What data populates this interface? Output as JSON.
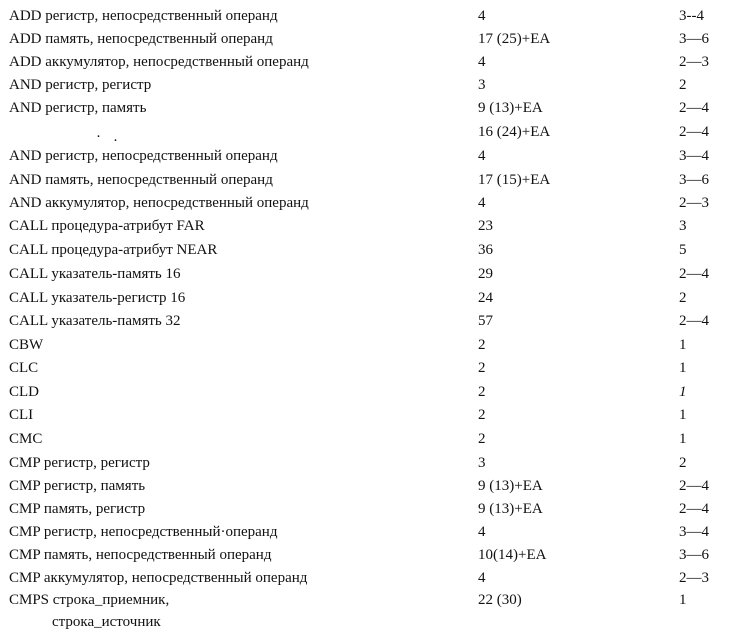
{
  "rows": [
    {
      "instr": "ADD регистр, непосредственный операнд",
      "cycles": "4",
      "bytes": "3--4"
    },
    {
      "instr": "ADD память, непосредственный операнд",
      "cycles": "17 (25)+EA",
      "bytes": "3—6"
    },
    {
      "instr": "ADD аккумулятор, непосредственный операнд",
      "cycles": "4",
      "bytes": "2—3"
    },
    {
      "instr": "AND регистр, регистр",
      "cycles": "3",
      "bytes": "2"
    },
    {
      "instr": "AND регистр, память",
      "cycles": "9 (13)+EA",
      "bytes": "2—4"
    },
    {
      "instr": "",
      "cycles": "16 (24)+EA",
      "bytes": "2—4"
    },
    {
      "instr": "AND регистр, непосредственный операнд",
      "cycles": "4",
      "bytes": "3—4"
    },
    {
      "instr": "AND память, непосредственный операнд",
      "cycles": "17 (15)+EA",
      "bytes": "3—6"
    },
    {
      "instr": "AND аккумулятор, непосредственный операнд",
      "cycles": "4",
      "bytes": "2—3"
    },
    {
      "instr": "CALL процедура-атрибут FAR",
      "cycles": "23",
      "bytes": "3"
    },
    {
      "instr": "CALL процедура-атрибут NEAR",
      "cycles": "36",
      "bytes": "5"
    },
    {
      "instr": "CALL указатель-память 16",
      "cycles": "29",
      "bytes": "2—4"
    },
    {
      "instr": "CALL указатель-регистр 16",
      "cycles": "24",
      "bytes": "2"
    },
    {
      "instr": "CALL указатель-память 32",
      "cycles": "57",
      "bytes": "2—4"
    },
    {
      "instr": "CBW",
      "cycles": "2",
      "bytes": "1"
    },
    {
      "instr": "CLC",
      "cycles": "2",
      "bytes": "1"
    },
    {
      "instr": "CLD",
      "cycles": "2",
      "bytes": "1"
    },
    {
      "instr": "CLI",
      "cycles": "2",
      "bytes": "1"
    },
    {
      "instr": "CMC",
      "cycles": "2",
      "bytes": "1"
    },
    {
      "instr": "CMP регистр, регистр",
      "cycles": "3",
      "bytes": "2"
    },
    {
      "instr": "CMP регистр, память",
      "cycles": "9 (13)+EA",
      "bytes": "2—4"
    },
    {
      "instr": "CMP память, регистр",
      "cycles": "9 (13)+EA",
      "bytes": "2—4"
    },
    {
      "instr": "CMP регистр, непосредственный·операнд",
      "cycles": "4",
      "bytes": "3—4"
    },
    {
      "instr": "CMP память, непосредственный операнд",
      "cycles": "10(14)+EA",
      "bytes": "3—6"
    },
    {
      "instr": "CMP аккумулятор, непосредственный операнд",
      "cycles": "4",
      "bytes": "2—3"
    },
    {
      "instr": "CMPS строка_приемник,",
      "cycles": "22 (30)",
      "bytes": "1"
    }
  ],
  "continuation": "строка_источник"
}
